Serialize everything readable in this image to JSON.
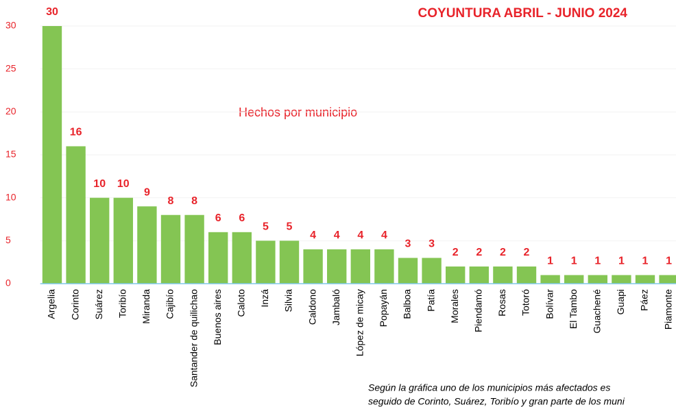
{
  "chart_data": {
    "type": "bar",
    "title": "COYUNTURA ABRIL - JUNIO 2024",
    "subtitle": "Hechos por municipio",
    "categories": [
      "Argelia",
      "Corinto",
      "Suárez",
      "Toribío",
      "Miranda",
      "Cajibío",
      "Santander de quilichao",
      "Buenos aires",
      "Caloto",
      "Inzá",
      "Silvia",
      "Caldono",
      "Jambaló",
      "López de micay",
      "Popayán",
      "Balboa",
      "Patía",
      "Morales",
      "Piendamó",
      "Rosas",
      "Totoró",
      "Bolívar",
      "El Tambo",
      "Guachené",
      "Guapi",
      "Páez",
      "Piamonte"
    ],
    "values": [
      30,
      16,
      10,
      10,
      9,
      8,
      8,
      6,
      6,
      5,
      5,
      4,
      4,
      4,
      4,
      3,
      3,
      2,
      2,
      2,
      2,
      1,
      1,
      1,
      1,
      1,
      1
    ],
    "color": "#84c553",
    "ylim": [
      0,
      30
    ],
    "yticks": [
      0,
      5,
      10,
      15,
      20,
      25,
      30
    ],
    "grid": true,
    "annotations": [
      "Según la gráfica uno de los municipios más afectados es",
      "seguido de Corinto, Suárez, Toribío y gran parte de los muni"
    ]
  }
}
